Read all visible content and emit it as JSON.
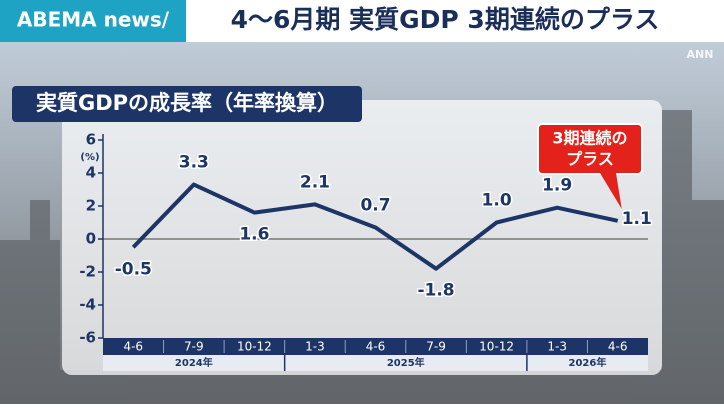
{
  "header": {
    "logo": "ABEMA news/",
    "title": "4〜6月期 実質GDP 3期連続のプラス",
    "watermark": "ANN"
  },
  "chart_data": {
    "type": "line",
    "title": "実質GDPの成長率（年率換算）",
    "y_unit": "(%)",
    "categories": [
      "4-6",
      "7-9",
      "10-12",
      "1-3",
      "4-6",
      "7-9",
      "10-12",
      "1-3",
      "4-6"
    ],
    "year_labels": [
      "2024年",
      null,
      null,
      "2025年",
      null,
      null,
      null,
      "2026年",
      null
    ],
    "values": [
      -0.5,
      3.3,
      1.6,
      2.1,
      0.7,
      -1.8,
      1.0,
      1.9,
      1.1
    ],
    "value_labels": [
      "-0.5",
      "3.3",
      "1.6",
      "2.1",
      "0.7",
      "-1.8",
      "1.0",
      "1.9",
      "1.1"
    ],
    "color": "#1c3566",
    "ylim": [
      -6,
      6
    ],
    "yticks": [
      6,
      4,
      2,
      0,
      -2,
      -4,
      -6
    ],
    "annotation": [
      "3期連続の",
      "プラス"
    ]
  }
}
